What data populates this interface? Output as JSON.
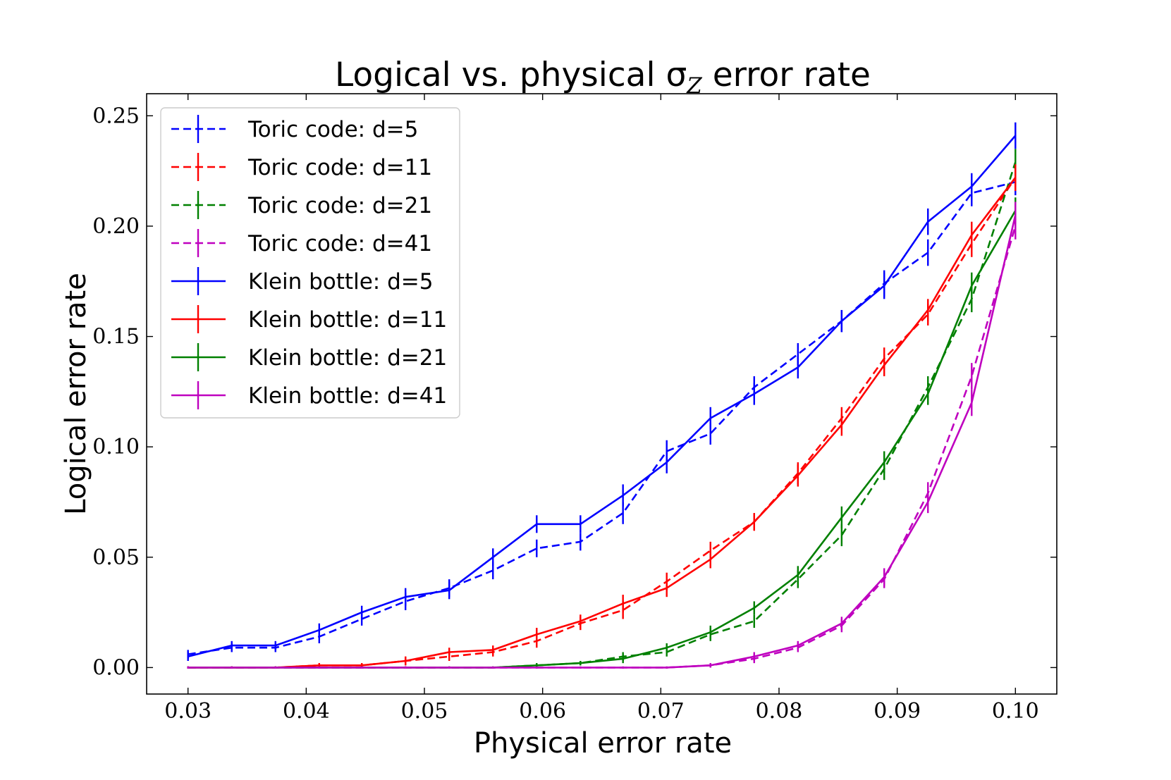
{
  "chart_data": {
    "type": "line",
    "title": "Logical vs. physical σ",
    "title_subscript": "Z",
    "title_suffix": " error rate",
    "xlabel": "Physical error rate",
    "ylabel": "Logical error rate",
    "xlim": [
      0.0265,
      0.1035
    ],
    "ylim": [
      -0.012,
      0.26
    ],
    "xticks": [
      0.03,
      0.04,
      0.05,
      0.06,
      0.07,
      0.08,
      0.09,
      0.1
    ],
    "xtick_labels": [
      "0.03",
      "0.04",
      "0.05",
      "0.06",
      "0.07",
      "0.08",
      "0.09",
      "0.10"
    ],
    "yticks": [
      0.0,
      0.05,
      0.1,
      0.15,
      0.2,
      0.25
    ],
    "ytick_labels": [
      "0.00",
      "0.05",
      "0.10",
      "0.15",
      "0.20",
      "0.25"
    ],
    "legend_position": "top-left",
    "x": [
      0.03,
      0.0337,
      0.0374,
      0.0411,
      0.0447,
      0.0484,
      0.0521,
      0.0558,
      0.0595,
      0.0632,
      0.0668,
      0.0705,
      0.0742,
      0.0779,
      0.0816,
      0.0853,
      0.0889,
      0.0926,
      0.0963,
      0.1
    ],
    "series": [
      {
        "name": "Toric code: d=5",
        "color": "#0000ff",
        "dashed": true,
        "values": [
          0.006,
          0.009,
          0.009,
          0.014,
          0.022,
          0.03,
          0.036,
          0.044,
          0.054,
          0.057,
          0.07,
          0.098,
          0.106,
          0.127,
          0.142,
          0.157,
          0.174,
          0.188,
          0.215,
          0.22
        ],
        "errors": [
          0.002,
          0.002,
          0.002,
          0.003,
          0.003,
          0.004,
          0.004,
          0.004,
          0.004,
          0.004,
          0.005,
          0.005,
          0.005,
          0.005,
          0.005,
          0.005,
          0.006,
          0.006,
          0.006,
          0.006
        ]
      },
      {
        "name": "Toric code: d=11",
        "color": "#ff0000",
        "dashed": true,
        "values": [
          0.0,
          0.0,
          0.0,
          0.001,
          0.001,
          0.003,
          0.005,
          0.007,
          0.012,
          0.02,
          0.026,
          0.039,
          0.053,
          0.066,
          0.088,
          0.113,
          0.14,
          0.16,
          0.192,
          0.222
        ],
        "errors": [
          0.0005,
          0.0005,
          0.0005,
          0.001,
          0.001,
          0.002,
          0.002,
          0.002,
          0.003,
          0.003,
          0.004,
          0.004,
          0.004,
          0.004,
          0.005,
          0.005,
          0.005,
          0.005,
          0.006,
          0.006
        ]
      },
      {
        "name": "Toric code: d=21",
        "color": "#008000",
        "dashed": true,
        "values": [
          0.0,
          0.0,
          0.0,
          0.0,
          0.0,
          0.0,
          0.0,
          0.0,
          0.001,
          0.002,
          0.005,
          0.007,
          0.015,
          0.021,
          0.04,
          0.06,
          0.09,
          0.127,
          0.167,
          0.229
        ],
        "errors": [
          0.0005,
          0.0005,
          0.0005,
          0.0005,
          0.0005,
          0.0005,
          0.0005,
          0.0005,
          0.001,
          0.001,
          0.002,
          0.002,
          0.003,
          0.003,
          0.004,
          0.005,
          0.005,
          0.005,
          0.006,
          0.006
        ]
      },
      {
        "name": "Toric code: d=41",
        "color": "#bf00bf",
        "dashed": true,
        "values": [
          0.0,
          0.0,
          0.0,
          0.0,
          0.0,
          0.0,
          0.0,
          0.0,
          0.0,
          0.0,
          0.0,
          0.0,
          0.001,
          0.004,
          0.009,
          0.019,
          0.04,
          0.079,
          0.132,
          0.2
        ],
        "errors": [
          0.0005,
          0.0005,
          0.0005,
          0.0005,
          0.0005,
          0.0005,
          0.0005,
          0.0005,
          0.0005,
          0.0005,
          0.0005,
          0.0005,
          0.001,
          0.002,
          0.002,
          0.003,
          0.004,
          0.005,
          0.006,
          0.006
        ]
      },
      {
        "name": "Klein bottle: d=5",
        "color": "#0000ff",
        "dashed": false,
        "values": [
          0.005,
          0.01,
          0.01,
          0.017,
          0.025,
          0.032,
          0.035,
          0.05,
          0.065,
          0.065,
          0.078,
          0.093,
          0.113,
          0.124,
          0.136,
          0.157,
          0.173,
          0.202,
          0.218,
          0.241
        ],
        "errors": [
          0.002,
          0.002,
          0.002,
          0.003,
          0.003,
          0.004,
          0.004,
          0.004,
          0.004,
          0.004,
          0.005,
          0.005,
          0.005,
          0.005,
          0.005,
          0.005,
          0.006,
          0.006,
          0.006,
          0.006
        ]
      },
      {
        "name": "Klein bottle: d=11",
        "color": "#ff0000",
        "dashed": false,
        "values": [
          0.0,
          0.0,
          0.0,
          0.001,
          0.001,
          0.003,
          0.007,
          0.008,
          0.015,
          0.021,
          0.029,
          0.036,
          0.049,
          0.066,
          0.087,
          0.11,
          0.137,
          0.162,
          0.196,
          0.222
        ],
        "errors": [
          0.0005,
          0.0005,
          0.0005,
          0.001,
          0.001,
          0.002,
          0.002,
          0.002,
          0.003,
          0.003,
          0.004,
          0.004,
          0.004,
          0.004,
          0.005,
          0.005,
          0.005,
          0.005,
          0.006,
          0.006
        ]
      },
      {
        "name": "Klein bottle: d=21",
        "color": "#008000",
        "dashed": false,
        "values": [
          0.0,
          0.0,
          0.0,
          0.0,
          0.0,
          0.0,
          0.0,
          0.0,
          0.001,
          0.002,
          0.004,
          0.009,
          0.016,
          0.027,
          0.042,
          0.068,
          0.093,
          0.124,
          0.173,
          0.207
        ],
        "errors": [
          0.0005,
          0.0005,
          0.0005,
          0.0005,
          0.0005,
          0.0005,
          0.0005,
          0.0005,
          0.001,
          0.001,
          0.002,
          0.002,
          0.003,
          0.003,
          0.004,
          0.005,
          0.005,
          0.005,
          0.006,
          0.006
        ]
      },
      {
        "name": "Klein bottle: d=41",
        "color": "#bf00bf",
        "dashed": false,
        "values": [
          0.0,
          0.0,
          0.0,
          0.0,
          0.0,
          0.0,
          0.0,
          0.0,
          0.0,
          0.0,
          0.0,
          0.0,
          0.001,
          0.005,
          0.01,
          0.02,
          0.041,
          0.075,
          0.12,
          0.205
        ],
        "errors": [
          0.0005,
          0.0005,
          0.0005,
          0.0005,
          0.0005,
          0.0005,
          0.0005,
          0.0005,
          0.0005,
          0.0005,
          0.0005,
          0.0005,
          0.001,
          0.002,
          0.002,
          0.003,
          0.004,
          0.005,
          0.006,
          0.006
        ]
      }
    ]
  }
}
